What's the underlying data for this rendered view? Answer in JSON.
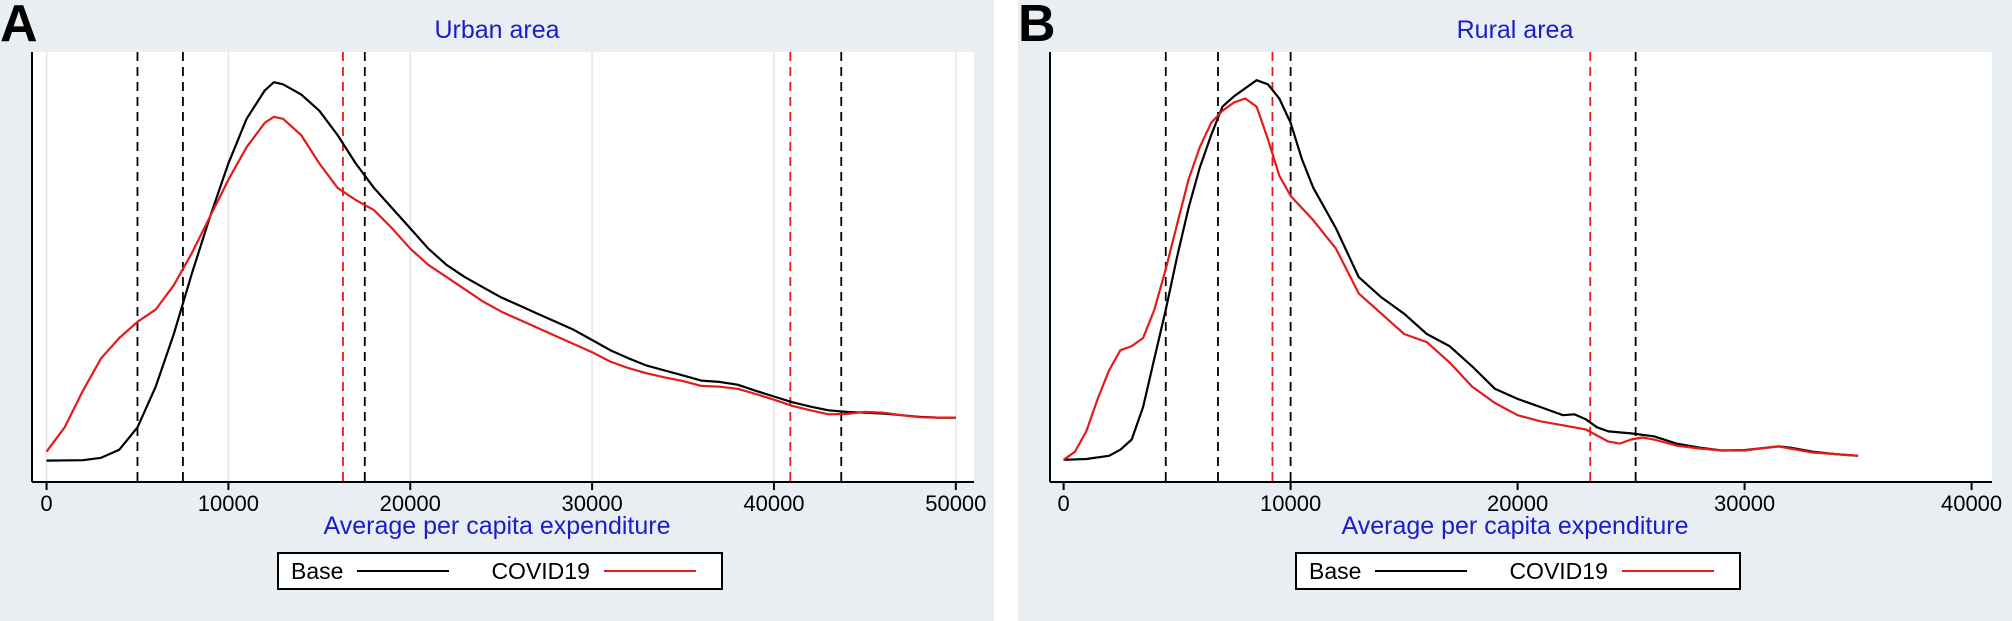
{
  "colors": {
    "base": "#000000",
    "covid": "#e41b1b",
    "title": "#1c1cc8",
    "background": "#e9eef2",
    "plot": "#ffffff",
    "grid": "#e4e4e4"
  },
  "chart_data": [
    {
      "type": "line",
      "panel_label": "A",
      "title": "Urban area",
      "xlabel": "Average per capita expenditure",
      "xlim": [
        -800,
        51000
      ],
      "ylim": [
        0,
        1
      ],
      "x_ticks": [
        0,
        10000,
        20000,
        30000,
        40000,
        50000
      ],
      "x_tick_labels": [
        "0",
        "10000",
        "20000",
        "30000",
        "40000",
        "50000"
      ],
      "grid": true,
      "legend": {
        "position": "bottom",
        "entries": [
          "Base",
          "COVID19"
        ]
      },
      "series": [
        {
          "name": "Base",
          "color": "#000000",
          "x": [
            0,
            2000,
            3000,
            4000,
            5000,
            6000,
            7000,
            8000,
            9000,
            10000,
            11000,
            12000,
            12500,
            13000,
            14000,
            15000,
            16000,
            17000,
            18000,
            19000,
            20000,
            21000,
            22000,
            23000,
            24000,
            25000,
            26000,
            27000,
            28000,
            29000,
            30000,
            31000,
            32000,
            33000,
            34000,
            35000,
            36000,
            37000,
            38000,
            39000,
            40000,
            41000,
            42000,
            43000,
            44000,
            45000,
            46000,
            47000,
            48000,
            49000,
            50000
          ],
          "y": [
            0.028,
            0.029,
            0.035,
            0.055,
            0.11,
            0.21,
            0.34,
            0.49,
            0.63,
            0.76,
            0.87,
            0.94,
            0.96,
            0.955,
            0.93,
            0.89,
            0.83,
            0.76,
            0.7,
            0.65,
            0.6,
            0.55,
            0.51,
            0.48,
            0.455,
            0.43,
            0.41,
            0.39,
            0.37,
            0.35,
            0.325,
            0.3,
            0.28,
            0.262,
            0.25,
            0.238,
            0.225,
            0.222,
            0.215,
            0.2,
            0.186,
            0.172,
            0.161,
            0.152,
            0.148,
            0.146,
            0.144,
            0.14,
            0.136,
            0.134,
            0.134
          ]
        },
        {
          "name": "COVID19",
          "color": "#e41b1b",
          "x": [
            0,
            1000,
            2000,
            3000,
            4000,
            5000,
            6000,
            7000,
            8000,
            9000,
            10000,
            11000,
            12000,
            12500,
            13000,
            14000,
            15000,
            16000,
            17000,
            18000,
            19000,
            20000,
            21000,
            22000,
            23000,
            24000,
            25000,
            26000,
            27000,
            28000,
            29000,
            30000,
            31000,
            32000,
            33000,
            34000,
            35000,
            36000,
            37000,
            38000,
            39000,
            40000,
            41000,
            42000,
            43000,
            44000,
            45000,
            46000,
            47000,
            48000,
            49000,
            50000
          ],
          "y": [
            0.05,
            0.11,
            0.2,
            0.28,
            0.33,
            0.37,
            0.4,
            0.46,
            0.54,
            0.63,
            0.72,
            0.8,
            0.86,
            0.875,
            0.87,
            0.83,
            0.76,
            0.7,
            0.67,
            0.645,
            0.6,
            0.55,
            0.51,
            0.48,
            0.45,
            0.42,
            0.395,
            0.375,
            0.355,
            0.335,
            0.315,
            0.295,
            0.272,
            0.256,
            0.243,
            0.233,
            0.224,
            0.212,
            0.21,
            0.205,
            0.192,
            0.178,
            0.163,
            0.152,
            0.142,
            0.143,
            0.148,
            0.146,
            0.14,
            0.135,
            0.134,
            0.134
          ]
        }
      ],
      "reference_lines": [
        {
          "x": 5000,
          "color": "#000000"
        },
        {
          "x": 7500,
          "color": "#000000"
        },
        {
          "x": 16300,
          "color": "#e41b1b"
        },
        {
          "x": 17500,
          "color": "#000000"
        },
        {
          "x": 40900,
          "color": "#e41b1b"
        },
        {
          "x": 43700,
          "color": "#000000"
        }
      ]
    },
    {
      "type": "line",
      "panel_label": "B",
      "title": "Rural area",
      "xlabel": "Average per capita expenditure",
      "xlim": [
        -600,
        40900
      ],
      "ylim": [
        0,
        1
      ],
      "x_ticks": [
        0,
        10000,
        20000,
        30000,
        40000
      ],
      "x_tick_labels": [
        "0",
        "10000",
        "20000",
        "30000",
        "40000"
      ],
      "grid": false,
      "legend": {
        "position": "bottom",
        "entries": [
          "Base",
          "COVID19"
        ]
      },
      "series": [
        {
          "name": "Base",
          "color": "#000000",
          "x": [
            0,
            1000,
            2000,
            2500,
            3000,
            3500,
            4000,
            4500,
            5000,
            5500,
            6000,
            6500,
            7000,
            7500,
            8000,
            8500,
            9000,
            9500,
            10000,
            10500,
            11000,
            12000,
            13000,
            14000,
            15000,
            16000,
            17000,
            18000,
            19000,
            20000,
            21000,
            22000,
            22500,
            23000,
            23500,
            24000,
            25000,
            26000,
            27000,
            28000,
            29000,
            30000,
            31000,
            31500,
            32000,
            33000,
            34000,
            35000
          ],
          "y": [
            0.03,
            0.032,
            0.04,
            0.055,
            0.08,
            0.16,
            0.28,
            0.4,
            0.53,
            0.65,
            0.75,
            0.83,
            0.9,
            0.925,
            0.945,
            0.965,
            0.955,
            0.92,
            0.86,
            0.77,
            0.7,
            0.6,
            0.48,
            0.43,
            0.39,
            0.34,
            0.31,
            0.26,
            0.205,
            0.18,
            0.16,
            0.14,
            0.142,
            0.13,
            0.11,
            0.1,
            0.095,
            0.088,
            0.07,
            0.06,
            0.053,
            0.054,
            0.06,
            0.063,
            0.06,
            0.05,
            0.044,
            0.04
          ]
        },
        {
          "name": "COVID19",
          "color": "#e41b1b",
          "x": [
            0,
            500,
            1000,
            1500,
            2000,
            2500,
            3000,
            3500,
            4000,
            4500,
            5000,
            5500,
            6000,
            6500,
            7000,
            7500,
            8000,
            8500,
            9000,
            9500,
            10000,
            10500,
            11000,
            12000,
            13000,
            14000,
            15000,
            16000,
            17000,
            18000,
            19000,
            20000,
            21000,
            22000,
            23000,
            23500,
            24000,
            24500,
            25000,
            25500,
            26000,
            27000,
            28000,
            29000,
            30000,
            31000,
            31500,
            32000,
            33000,
            34000,
            35000
          ],
          "y": [
            0.03,
            0.05,
            0.1,
            0.18,
            0.25,
            0.3,
            0.31,
            0.33,
            0.4,
            0.5,
            0.61,
            0.72,
            0.8,
            0.86,
            0.89,
            0.91,
            0.92,
            0.9,
            0.82,
            0.73,
            0.68,
            0.65,
            0.62,
            0.55,
            0.44,
            0.39,
            0.34,
            0.32,
            0.27,
            0.21,
            0.17,
            0.14,
            0.125,
            0.115,
            0.105,
            0.09,
            0.075,
            0.07,
            0.08,
            0.085,
            0.08,
            0.065,
            0.058,
            0.053,
            0.053,
            0.06,
            0.063,
            0.058,
            0.048,
            0.044,
            0.04
          ]
        }
      ],
      "reference_lines": [
        {
          "x": 4500,
          "color": "#000000"
        },
        {
          "x": 6800,
          "color": "#000000"
        },
        {
          "x": 9200,
          "color": "#e41b1b"
        },
        {
          "x": 10000,
          "color": "#000000"
        },
        {
          "x": 23200,
          "color": "#e41b1b"
        },
        {
          "x": 25200,
          "color": "#000000"
        }
      ]
    }
  ]
}
